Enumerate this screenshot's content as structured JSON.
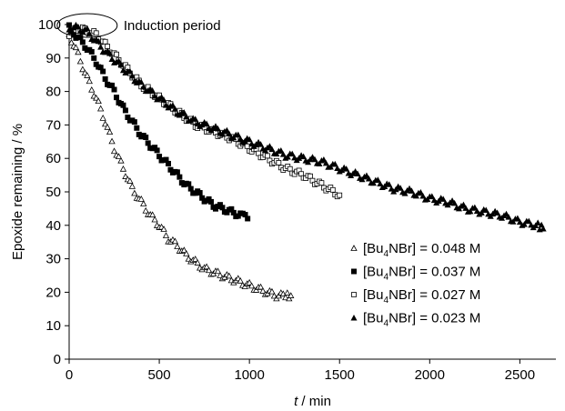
{
  "chart_data": {
    "type": "scatter",
    "xlabel_italic": "t",
    "xlabel_rest": " / min",
    "ylabel": "Epoxide remaining / %",
    "xlim": [
      0,
      2700
    ],
    "ylim": [
      0,
      100
    ],
    "xticks": [
      0,
      500,
      1000,
      1500,
      2000,
      2500
    ],
    "yticks": [
      0,
      10,
      20,
      30,
      40,
      50,
      60,
      70,
      80,
      90,
      100
    ],
    "xtick_labels": [
      "0",
      "500",
      "1000",
      "1500",
      "2000",
      "2500"
    ],
    "ytick_labels": [
      "0",
      "10",
      "20",
      "30",
      "40",
      "50",
      "60",
      "70",
      "80",
      "90",
      "100"
    ],
    "grid": false,
    "legend_position": "center-right",
    "annotation": {
      "text": "Induction period",
      "x": 100,
      "y": 100
    },
    "series": [
      {
        "name_prefix": "[Bu",
        "name_sub": "4",
        "name_suffix": "NBr] = 0.048 M",
        "marker": "open-triangle",
        "x": [
          0,
          50,
          100,
          150,
          200,
          250,
          300,
          350,
          400,
          450,
          500,
          550,
          600,
          650,
          700,
          750,
          800,
          850,
          900,
          950,
          1000,
          1050,
          1100,
          1150,
          1200,
          1230
        ],
        "y": [
          97,
          91,
          84,
          78,
          71,
          63,
          57,
          51,
          47,
          43,
          40,
          36,
          34,
          31,
          29,
          27,
          26,
          25,
          24,
          23,
          22,
          21,
          20,
          19,
          19,
          19
        ]
      },
      {
        "name_prefix": "[Bu",
        "name_sub": "4",
        "name_suffix": "NBr] = 0.037 M",
        "marker": "filled-square",
        "x": [
          0,
          50,
          100,
          150,
          200,
          250,
          300,
          350,
          400,
          450,
          500,
          550,
          600,
          650,
          700,
          750,
          800,
          850,
          900,
          950,
          990
        ],
        "y": [
          99,
          96,
          93,
          89,
          84,
          80,
          75,
          71,
          67,
          64,
          61,
          58,
          55,
          52,
          50,
          48,
          46,
          45,
          44,
          43,
          42
        ]
      },
      {
        "name_prefix": "[Bu",
        "name_sub": "4",
        "name_suffix": "NBr] = 0.027 M",
        "marker": "open-square",
        "x": [
          0,
          50,
          100,
          150,
          200,
          300,
          400,
          500,
          600,
          700,
          800,
          900,
          1000,
          1100,
          1200,
          1300,
          1400,
          1500
        ],
        "y": [
          97,
          99,
          98,
          97,
          94,
          88,
          82,
          78,
          74,
          70,
          68,
          66,
          63,
          60,
          57,
          55,
          52,
          49
        ]
      },
      {
        "name_prefix": "[Bu",
        "name_sub": "4",
        "name_suffix": "NBr] = 0.023 M",
        "marker": "filled-triangle",
        "x": [
          0,
          50,
          100,
          150,
          200,
          300,
          400,
          500,
          600,
          700,
          800,
          900,
          1000,
          1100,
          1200,
          1300,
          1400,
          1500,
          1600,
          1700,
          1800,
          1900,
          2000,
          2100,
          2200,
          2300,
          2400,
          2500,
          2600,
          2630
        ],
        "y": [
          99,
          99,
          98,
          95,
          92,
          87,
          82,
          78,
          74,
          71,
          69,
          67,
          65,
          63,
          61,
          60,
          59,
          57,
          55,
          53,
          51,
          50,
          48,
          47,
          45,
          44,
          43,
          41,
          40,
          39
        ]
      }
    ]
  }
}
